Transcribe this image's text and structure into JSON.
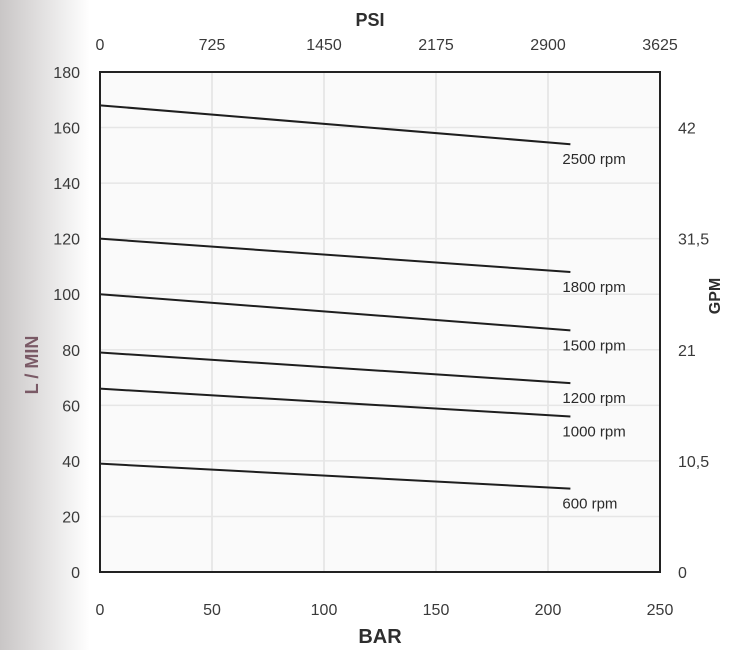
{
  "chart_data": {
    "type": "line",
    "xlabel": "BAR",
    "x2label": "PSI",
    "ylabel": "L / MIN",
    "y2label": "GPM",
    "xlim": [
      0,
      250
    ],
    "ylim": [
      0,
      180
    ],
    "x_ticks": [
      "0",
      "50",
      "100",
      "150",
      "200",
      "250"
    ],
    "y_ticks": [
      "0",
      "20",
      "40",
      "60",
      "80",
      "100",
      "120",
      "140",
      "160",
      "180"
    ],
    "x2_ticks": [
      "0",
      "725",
      "1450",
      "2175",
      "2900",
      "3625"
    ],
    "y2_ticks": [
      {
        "label": "0",
        "value": 0
      },
      {
        "label": "10,5",
        "value": 40
      },
      {
        "label": "21",
        "value": 80
      },
      {
        "label": "31,5",
        "value": 120
      },
      {
        "label": "42",
        "value": 160
      }
    ],
    "grid": true,
    "series": [
      {
        "name": "2500 rpm",
        "x": [
          0,
          210
        ],
        "y": [
          168,
          154
        ]
      },
      {
        "name": "1800 rpm",
        "x": [
          0,
          210
        ],
        "y": [
          120,
          108
        ]
      },
      {
        "name": "1500 rpm",
        "x": [
          0,
          210
        ],
        "y": [
          100,
          87
        ]
      },
      {
        "name": "1200 rpm",
        "x": [
          0,
          210
        ],
        "y": [
          79,
          68
        ]
      },
      {
        "name": "1000 rpm",
        "x": [
          0,
          210
        ],
        "y": [
          66,
          56
        ]
      },
      {
        "name": "600 rpm",
        "x": [
          0,
          210
        ],
        "y": [
          39,
          30
        ]
      }
    ]
  }
}
